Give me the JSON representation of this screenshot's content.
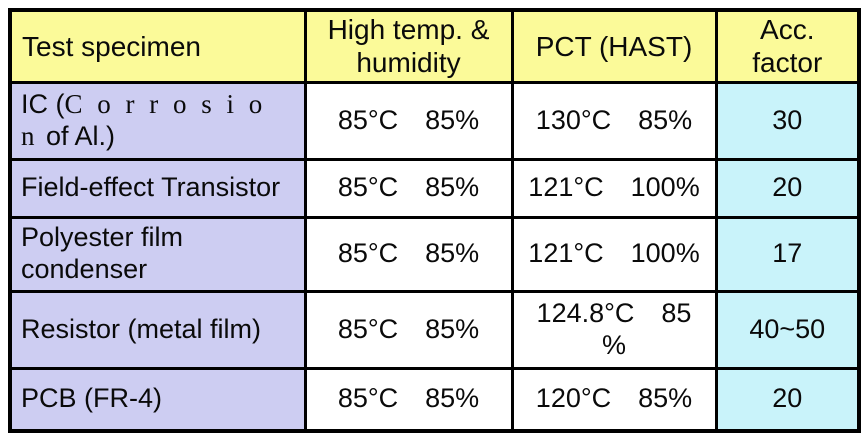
{
  "colors": {
    "header_bg": "#fbfa99",
    "specimen_bg": "#cdcdf2",
    "value_bg": "#ffffff",
    "acc_bg": "#c9f3fa",
    "border_color": "#000000",
    "text_color": "#0a0a0a",
    "page_bg": "#ffffff"
  },
  "table": {
    "headers": {
      "specimen": "Test specimen",
      "high_temp": "High temp. &\nhumidity",
      "pct": "PCT (HAST)",
      "acc": "Acc.\nfactor"
    },
    "rows": [
      {
        "specimen_prefix": "IC (",
        "specimen_spaced": "C o r r o s i o\nn",
        "specimen_suffix": " of Al.)",
        "high_temp": "85°C  85%",
        "pct": "130°C  85%",
        "acc": "30"
      },
      {
        "specimen": "Field-effect Transistor",
        "high_temp": "85°C  85%",
        "pct": "121°C  100%",
        "acc": "20"
      },
      {
        "specimen": "Polyester film\ncondenser",
        "high_temp": "85°C  85%",
        "pct": "121°C  100%",
        "acc": "17"
      },
      {
        "specimen": "Resistor (metal film)",
        "high_temp": "85°C  85%",
        "pct": "124.8°C  85\n%",
        "acc": "40~50"
      },
      {
        "specimen": "PCB (FR-4)",
        "high_temp": "85°C  85%",
        "pct": "120°C  85%",
        "acc": "20"
      }
    ]
  }
}
